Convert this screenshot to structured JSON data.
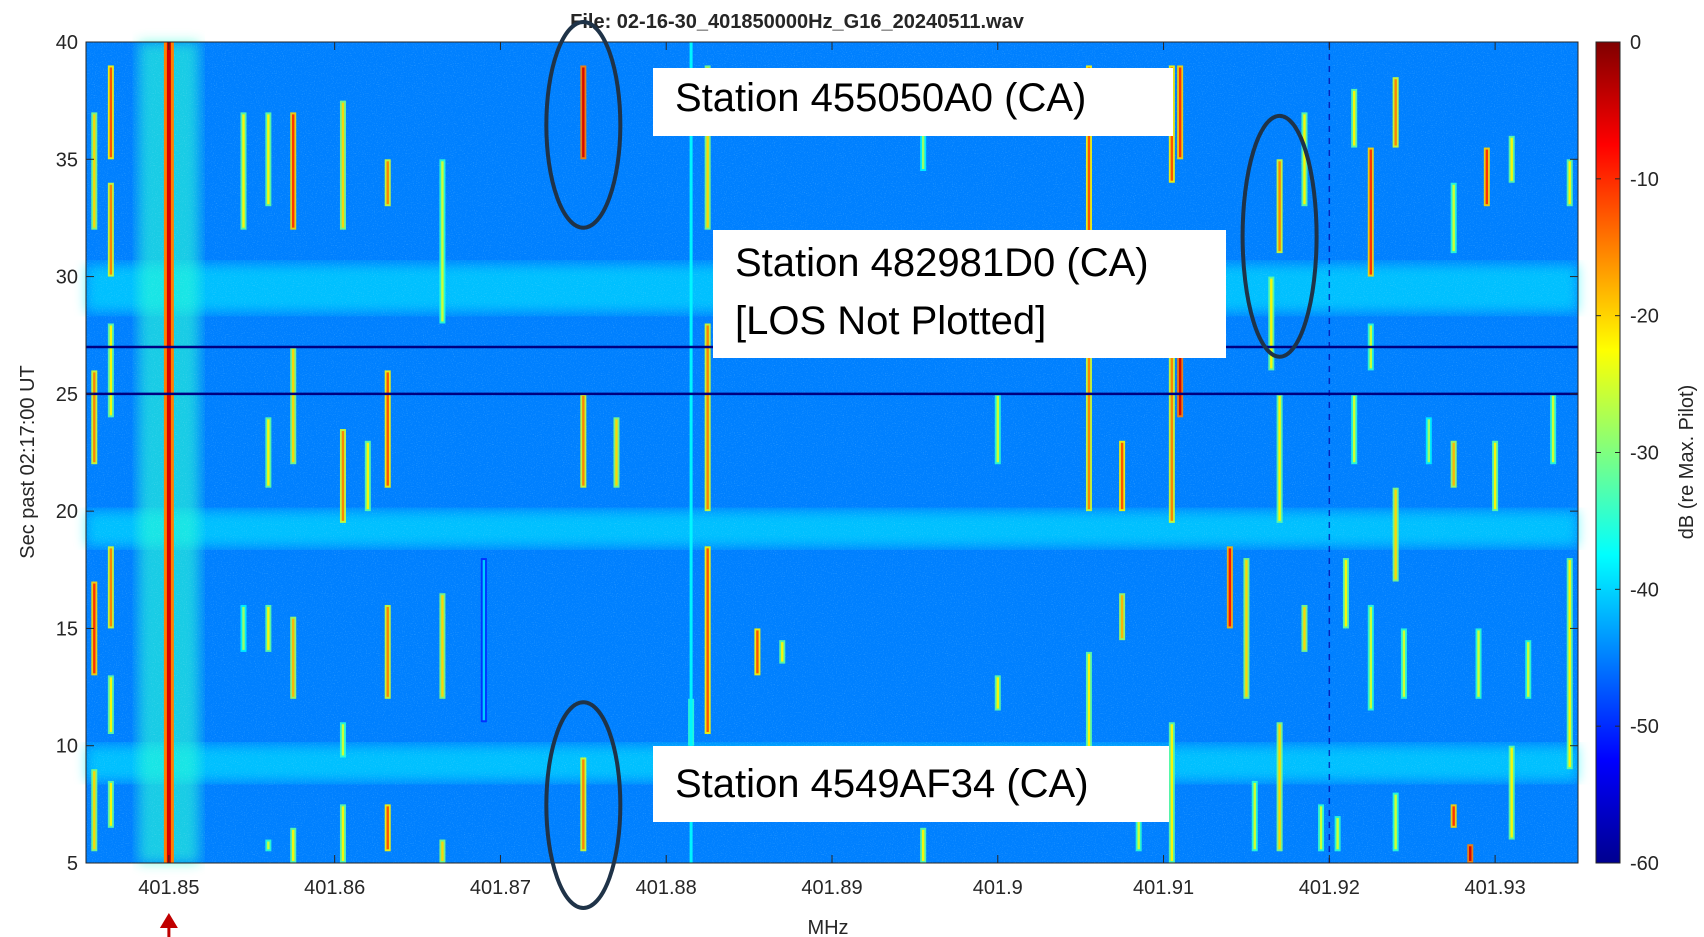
{
  "chart_data": {
    "type": "heatmap",
    "title": "File: 02-16-30_401850000Hz_G16_20240511.wav",
    "xlabel": "MHz",
    "ylabel": "Sec past 02:17:00 UT",
    "xlim": [
      401.845,
      401.935
    ],
    "ylim": [
      5,
      40
    ],
    "x_ticks": [
      401.85,
      401.86,
      401.87,
      401.88,
      401.89,
      401.9,
      401.91,
      401.92,
      401.93
    ],
    "x_tick_labels": [
      "401.85",
      "401.86",
      "401.87",
      "401.88",
      "401.89",
      "401.9",
      "401.91",
      "401.92",
      "401.93"
    ],
    "y_ticks": [
      5,
      10,
      15,
      20,
      25,
      30,
      35,
      40
    ],
    "y_tick_labels": [
      "5",
      "10",
      "15",
      "20",
      "25",
      "30",
      "35",
      "40"
    ],
    "colorbar": {
      "label": "dB (re Max. Pilot)",
      "range": [
        -60,
        0
      ],
      "ticks": [
        0,
        -10,
        -20,
        -30,
        -40,
        -50,
        -60
      ],
      "tick_labels": [
        "0",
        "-10",
        "-20",
        "-30",
        "-40",
        "-50",
        "-60"
      ],
      "colormap": "jet"
    },
    "background_level_db": -45,
    "pilot_tone": {
      "freq_mhz": 401.85,
      "level_db": -5,
      "marker_color": "#c00000"
    },
    "horizontal_dropouts_sec": [
      25,
      27
    ],
    "annotations": [
      {
        "text": "Station 455050A0 (CA)",
        "freq_mhz": 401.875,
        "sec_range": [
          34,
          40
        ]
      },
      {
        "text": "Station 482981D0 (CA)",
        "text2": "[LOS Not Plotted]",
        "freq_mhz": 401.917,
        "sec_range": [
          28.5,
          36
        ]
      },
      {
        "text": "Station 4549AF34 (CA)",
        "freq_mhz": 401.875,
        "sec_range": [
          5,
          11
        ]
      }
    ],
    "signals": [
      {
        "f": 401.8455,
        "t0": 5.5,
        "t1": 9,
        "db": -20
      },
      {
        "f": 401.8455,
        "t0": 13,
        "t1": 17,
        "db": -10
      },
      {
        "f": 401.8455,
        "t0": 22,
        "t1": 26,
        "db": -15
      },
      {
        "f": 401.8455,
        "t0": 32,
        "t1": 37,
        "db": -20
      },
      {
        "f": 401.8465,
        "t0": 6.5,
        "t1": 8.5,
        "db": -22
      },
      {
        "f": 401.8465,
        "t0": 10.5,
        "t1": 13,
        "db": -22
      },
      {
        "f": 401.8465,
        "t0": 15,
        "t1": 18.5,
        "db": -15
      },
      {
        "f": 401.8465,
        "t0": 24,
        "t1": 28,
        "db": -22
      },
      {
        "f": 401.8465,
        "t0": 30,
        "t1": 34,
        "db": -15
      },
      {
        "f": 401.8465,
        "t0": 35,
        "t1": 39,
        "db": -12
      },
      {
        "f": 401.8545,
        "t0": 14,
        "t1": 16,
        "db": -28
      },
      {
        "f": 401.8545,
        "t0": 32,
        "t1": 37,
        "db": -22
      },
      {
        "f": 401.856,
        "t0": 5.5,
        "t1": 6,
        "db": -25
      },
      {
        "f": 401.856,
        "t0": 14,
        "t1": 16,
        "db": -22
      },
      {
        "f": 401.856,
        "t0": 21,
        "t1": 24,
        "db": -22
      },
      {
        "f": 401.856,
        "t0": 33,
        "t1": 37,
        "db": -22
      },
      {
        "f": 401.8575,
        "t0": 5,
        "t1": 6.5,
        "db": -22
      },
      {
        "f": 401.8575,
        "t0": 12,
        "t1": 15.5,
        "db": -18
      },
      {
        "f": 401.8575,
        "t0": 22,
        "t1": 27,
        "db": -20
      },
      {
        "f": 401.8575,
        "t0": 32,
        "t1": 37,
        "db": -10
      },
      {
        "f": 401.8605,
        "t0": 5,
        "t1": 7.5,
        "db": -22
      },
      {
        "f": 401.8605,
        "t0": 9.5,
        "t1": 11,
        "db": -25
      },
      {
        "f": 401.8605,
        "t0": 19.5,
        "t1": 23.5,
        "db": -15
      },
      {
        "f": 401.8605,
        "t0": 32,
        "t1": 37.5,
        "db": -20
      },
      {
        "f": 401.862,
        "t0": 20,
        "t1": 23,
        "db": -22
      },
      {
        "f": 401.8632,
        "t0": 5.5,
        "t1": 7.5,
        "db": -12
      },
      {
        "f": 401.8632,
        "t0": 12,
        "t1": 16,
        "db": -15
      },
      {
        "f": 401.8632,
        "t0": 21,
        "t1": 26,
        "db": -12
      },
      {
        "f": 401.8632,
        "t0": 33,
        "t1": 35,
        "db": -15
      },
      {
        "f": 401.8665,
        "t0": 12,
        "t1": 16.5,
        "db": -20
      },
      {
        "f": 401.8665,
        "t0": 28,
        "t1": 35,
        "db": -25
      },
      {
        "f": 401.8665,
        "t0": 5,
        "t1": 6,
        "db": -20
      },
      {
        "f": 401.875,
        "t0": 5.5,
        "t1": 9.5,
        "db": -15
      },
      {
        "f": 401.875,
        "t0": 21,
        "t1": 25,
        "db": -15
      },
      {
        "f": 401.875,
        "t0": 35,
        "t1": 39,
        "db": -5
      },
      {
        "f": 401.8815,
        "t0": 10,
        "t1": 12,
        "db": -25
      },
      {
        "f": 401.8825,
        "t0": 10.5,
        "t1": 18.5,
        "db": -12
      },
      {
        "f": 401.8825,
        "t0": 20,
        "t1": 28,
        "db": -15
      },
      {
        "f": 401.8825,
        "t0": 32,
        "t1": 39,
        "db": -20
      },
      {
        "f": 401.8855,
        "t0": 13,
        "t1": 15,
        "db": -12
      },
      {
        "f": 401.887,
        "t0": 13.5,
        "t1": 14.5,
        "db": -22
      },
      {
        "f": 401.8955,
        "t0": 5,
        "t1": 6.5,
        "db": -22
      },
      {
        "f": 401.8955,
        "t0": 34.5,
        "t1": 38,
        "db": -28
      },
      {
        "f": 401.9,
        "t0": 11.5,
        "t1": 13,
        "db": -22
      },
      {
        "f": 401.9,
        "t0": 22,
        "t1": 25,
        "db": -25
      },
      {
        "f": 401.9055,
        "t0": 7,
        "t1": 14,
        "db": -22
      },
      {
        "f": 401.9055,
        "t0": 20,
        "t1": 28,
        "db": -15
      },
      {
        "f": 401.9055,
        "t0": 30,
        "t1": 39,
        "db": -12
      },
      {
        "f": 401.9075,
        "t0": 14.5,
        "t1": 16.5,
        "db": -18
      },
      {
        "f": 401.9075,
        "t0": 20,
        "t1": 23,
        "db": -12
      },
      {
        "f": 401.9085,
        "t0": 5.5,
        "t1": 7,
        "db": -25
      },
      {
        "f": 401.9105,
        "t0": 5,
        "t1": 11,
        "db": -22
      },
      {
        "f": 401.9105,
        "t0": 19.5,
        "t1": 28,
        "db": -15
      },
      {
        "f": 401.9105,
        "t0": 34,
        "t1": 39,
        "db": -12
      },
      {
        "f": 401.911,
        "t0": 24,
        "t1": 28,
        "db": -5
      },
      {
        "f": 401.911,
        "t0": 35,
        "t1": 39,
        "db": -10
      },
      {
        "f": 401.914,
        "t0": 15,
        "t1": 18.5,
        "db": -8
      },
      {
        "f": 401.915,
        "t0": 12,
        "t1": 18,
        "db": -20
      },
      {
        "f": 401.9155,
        "t0": 5.5,
        "t1": 8.5,
        "db": -25
      },
      {
        "f": 401.9165,
        "t0": 26,
        "t1": 30,
        "db": -22
      },
      {
        "f": 401.917,
        "t0": 5.5,
        "t1": 11,
        "db": -20
      },
      {
        "f": 401.917,
        "t0": 19.5,
        "t1": 25,
        "db": -22
      },
      {
        "f": 401.917,
        "t0": 31,
        "t1": 35,
        "db": -15
      },
      {
        "f": 401.9185,
        "t0": 14,
        "t1": 16,
        "db": -20
      },
      {
        "f": 401.9185,
        "t0": 33,
        "t1": 37,
        "db": -22
      },
      {
        "f": 401.9195,
        "t0": 5.5,
        "t1": 7.5,
        "db": -25
      },
      {
        "f": 401.9205,
        "t0": 5.5,
        "t1": 7,
        "db": -25
      },
      {
        "f": 401.921,
        "t0": 15,
        "t1": 18,
        "db": -22
      },
      {
        "f": 401.9215,
        "t0": 22,
        "t1": 25,
        "db": -25
      },
      {
        "f": 401.9215,
        "t0": 35.5,
        "t1": 38,
        "db": -22
      },
      {
        "f": 401.9225,
        "t0": 11.5,
        "t1": 16,
        "db": -25
      },
      {
        "f": 401.9225,
        "t0": 30,
        "t1": 35.5,
        "db": -10
      },
      {
        "f": 401.9225,
        "t0": 26,
        "t1": 28,
        "db": -25
      },
      {
        "f": 401.924,
        "t0": 5.5,
        "t1": 8,
        "db": -25
      },
      {
        "f": 401.924,
        "t0": 17,
        "t1": 21,
        "db": -20
      },
      {
        "f": 401.924,
        "t0": 35.5,
        "t1": 38.5,
        "db": -15
      },
      {
        "f": 401.9245,
        "t0": 12,
        "t1": 15,
        "db": -25
      },
      {
        "f": 401.926,
        "t0": 22,
        "t1": 24,
        "db": -28
      },
      {
        "f": 401.9275,
        "t0": 6.5,
        "t1": 7.5,
        "db": -10
      },
      {
        "f": 401.9275,
        "t0": 21,
        "t1": 23,
        "db": -18
      },
      {
        "f": 401.9275,
        "t0": 31,
        "t1": 34,
        "db": -25
      },
      {
        "f": 401.9285,
        "t0": 5,
        "t1": 5.8,
        "db": -5
      },
      {
        "f": 401.929,
        "t0": 12,
        "t1": 15,
        "db": -25
      },
      {
        "f": 401.9295,
        "t0": 33,
        "t1": 35.5,
        "db": -10
      },
      {
        "f": 401.93,
        "t0": 20,
        "t1": 23,
        "db": -22
      },
      {
        "f": 401.931,
        "t0": 6,
        "t1": 10,
        "db": -22
      },
      {
        "f": 401.931,
        "t0": 34,
        "t1": 36,
        "db": -22
      },
      {
        "f": 401.932,
        "t0": 12,
        "t1": 14.5,
        "db": -25
      },
      {
        "f": 401.9335,
        "t0": 22,
        "t1": 25,
        "db": -25
      },
      {
        "f": 401.9345,
        "t0": 9,
        "t1": 18,
        "db": -22
      },
      {
        "f": 401.9345,
        "t0": 33,
        "t1": 35,
        "db": -22
      },
      {
        "f": 401.877,
        "t0": 21,
        "t1": 24,
        "db": -20
      },
      {
        "f": 401.869,
        "t0": 11,
        "t1": 18,
        "db": -40
      }
    ]
  }
}
